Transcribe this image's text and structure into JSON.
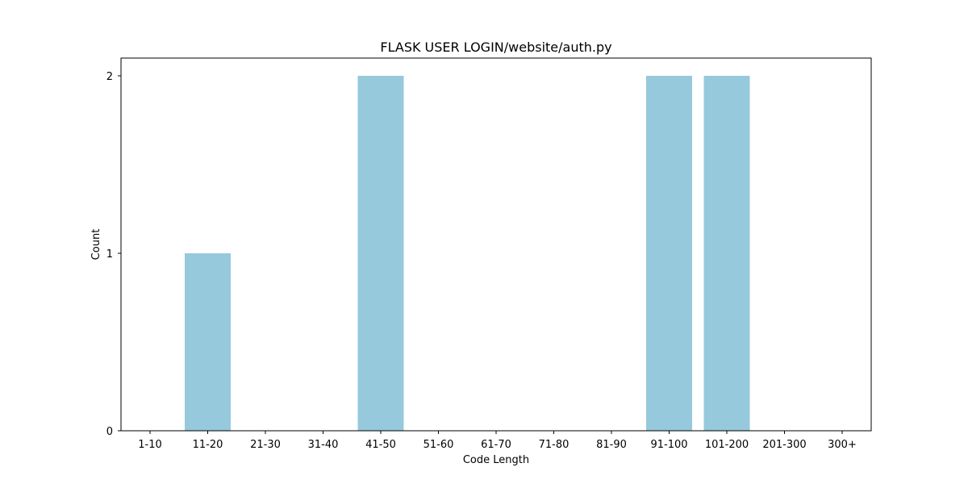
{
  "chart_data": {
    "type": "bar",
    "title": "FLASK USER LOGIN/website/auth.py",
    "xlabel": "Code Length",
    "ylabel": "Count",
    "categories": [
      "1-10",
      "11-20",
      "21-30",
      "31-40",
      "41-50",
      "51-60",
      "61-70",
      "71-80",
      "81-90",
      "91-100",
      "101-200",
      "201-300",
      "300+"
    ],
    "values": [
      0,
      1,
      0,
      0,
      2,
      0,
      0,
      0,
      0,
      2,
      2,
      0,
      0
    ],
    "ylim": [
      0,
      2.1
    ],
    "yticks": [
      0,
      1,
      2
    ],
    "grid": false,
    "bar_color": "#96c9dc"
  }
}
